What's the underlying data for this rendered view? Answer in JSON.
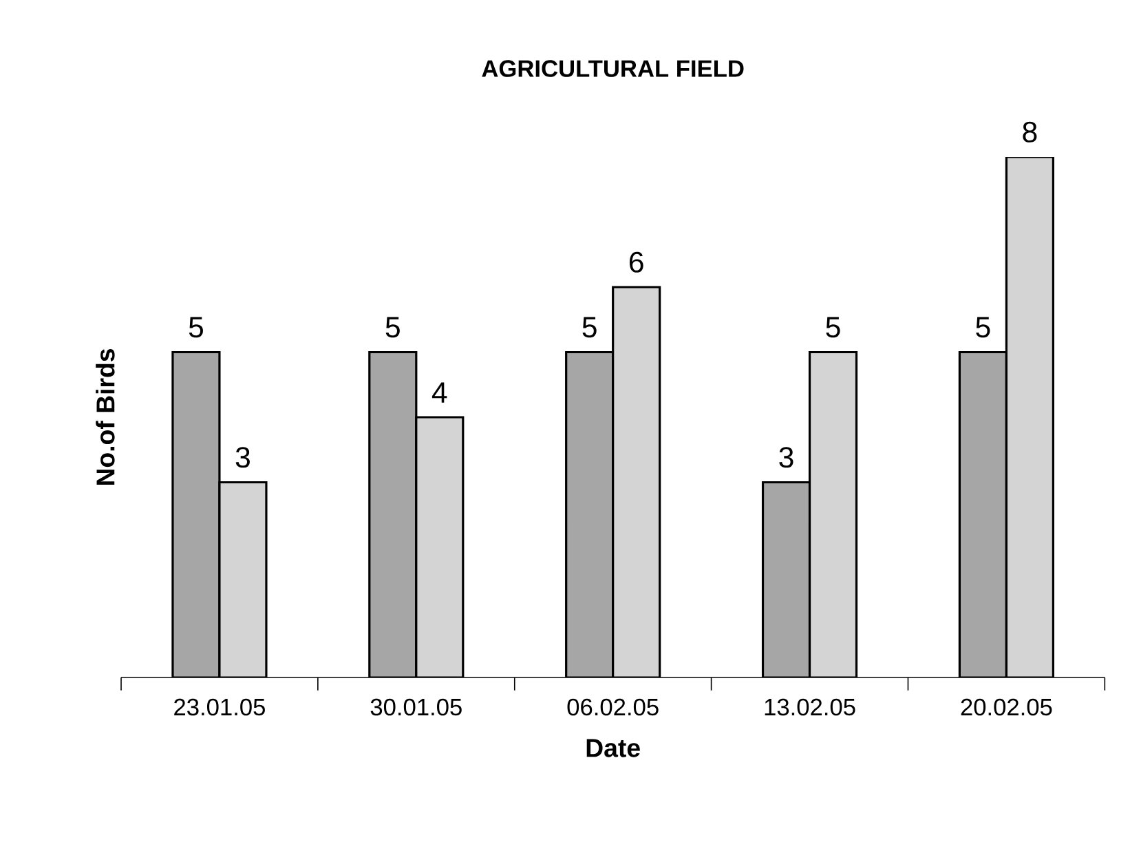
{
  "chart_data": {
    "type": "bar",
    "title": "AGRICULTURAL FIELD",
    "xlabel": "Date",
    "ylabel": "No.of Birds",
    "categories": [
      "23.01.05",
      "30.01.05",
      "06.02.05",
      "13.02.05",
      "20.02.05"
    ],
    "series": [
      {
        "color": "#a6a6a6",
        "values": [
          5,
          5,
          5,
          3,
          5
        ]
      },
      {
        "color": "#d4d4d4",
        "values": [
          3,
          4,
          6,
          5,
          8
        ]
      }
    ],
    "data_labels": true
  }
}
